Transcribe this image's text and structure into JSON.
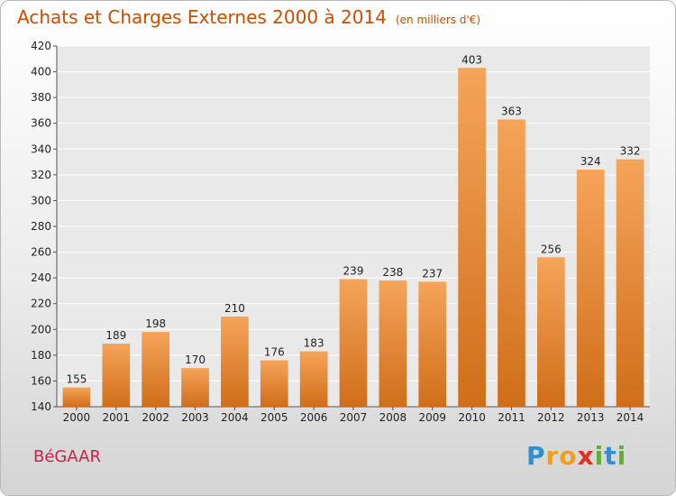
{
  "chart_data": {
    "type": "bar",
    "title": "Achats et Charges Externes 2000 à 2014",
    "unit": "(en milliers d'€)",
    "categories": [
      "2000",
      "2001",
      "2002",
      "2003",
      "2004",
      "2005",
      "2006",
      "2007",
      "2008",
      "2009",
      "2010",
      "2011",
      "2012",
      "2013",
      "2014"
    ],
    "values": [
      155,
      189,
      198,
      170,
      210,
      176,
      183,
      239,
      238,
      237,
      403,
      363,
      256,
      324,
      332
    ],
    "ylim": [
      140,
      420
    ],
    "yticks": [
      140,
      160,
      180,
      200,
      220,
      240,
      260,
      280,
      300,
      320,
      340,
      360,
      380,
      400,
      420
    ],
    "grid": true,
    "legend": "none",
    "bar_color_light": "#f5a45a",
    "bar_color_dark": "#cf6e1a"
  },
  "place_label": "BéGAAR",
  "logo": {
    "letters": [
      "P",
      "r",
      "o",
      "x",
      "i",
      "t",
      "i"
    ],
    "colors": [
      "#2f8fd0",
      "#f0a020",
      "#f0a020",
      "#e03020",
      "#60b030",
      "#2f8fd0",
      "#60b030"
    ]
  }
}
